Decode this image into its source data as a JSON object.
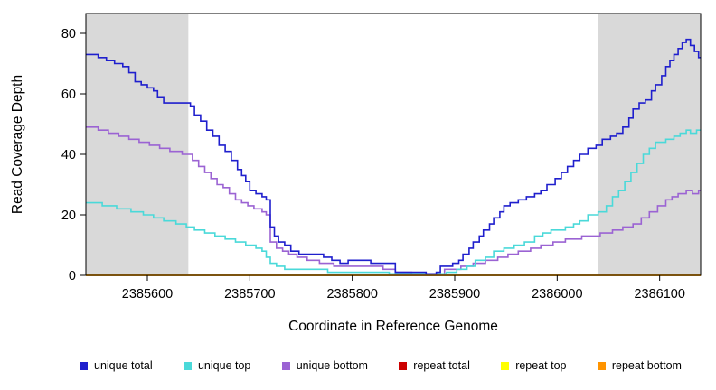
{
  "chart_data": {
    "type": "line",
    "step": true,
    "title": "",
    "xlabel": "Coordinate in Reference Genome",
    "ylabel": "Read Coverage Depth",
    "xlim": [
      2385540,
      2386140
    ],
    "ylim": [
      0,
      80
    ],
    "x_ticks": [
      2385600,
      2385700,
      2385800,
      2385900,
      2386000,
      2386100
    ],
    "y_ticks": [
      0,
      20,
      40,
      60,
      80
    ],
    "grid": false,
    "legend_position": "bottom",
    "shaded_regions": {
      "color": "#d9d9d9",
      "ranges": [
        [
          2385540,
          2385640
        ],
        [
          2386040,
          2386140
        ]
      ]
    },
    "draw_order": [
      3,
      4,
      2,
      1,
      0,
      5
    ],
    "series": [
      {
        "name": "unique total",
        "color": "#1f1fcd",
        "points": [
          [
            2385540,
            73
          ],
          [
            2385552,
            72
          ],
          [
            2385560,
            71
          ],
          [
            2385568,
            70
          ],
          [
            2385576,
            69
          ],
          [
            2385582,
            67
          ],
          [
            2385588,
            64
          ],
          [
            2385594,
            63
          ],
          [
            2385600,
            62
          ],
          [
            2385606,
            61
          ],
          [
            2385610,
            59
          ],
          [
            2385616,
            57
          ],
          [
            2385642,
            56
          ],
          [
            2385646,
            53
          ],
          [
            2385652,
            51
          ],
          [
            2385658,
            48
          ],
          [
            2385664,
            46
          ],
          [
            2385670,
            43
          ],
          [
            2385676,
            41
          ],
          [
            2385682,
            38
          ],
          [
            2385688,
            35
          ],
          [
            2385692,
            33
          ],
          [
            2385696,
            31
          ],
          [
            2385700,
            28
          ],
          [
            2385706,
            27
          ],
          [
            2385712,
            26
          ],
          [
            2385716,
            25
          ],
          [
            2385720,
            16
          ],
          [
            2385724,
            13
          ],
          [
            2385728,
            11
          ],
          [
            2385734,
            10
          ],
          [
            2385740,
            8
          ],
          [
            2385748,
            7
          ],
          [
            2385762,
            7
          ],
          [
            2385772,
            6
          ],
          [
            2385780,
            5
          ],
          [
            2385788,
            4
          ],
          [
            2385796,
            5
          ],
          [
            2385812,
            5
          ],
          [
            2385818,
            4
          ],
          [
            2385836,
            4
          ],
          [
            2385842,
            1
          ],
          [
            2385862,
            1
          ],
          [
            2385872,
            0.5
          ],
          [
            2385882,
            1
          ],
          [
            2385886,
            3
          ],
          [
            2385894,
            3
          ],
          [
            2385898,
            4
          ],
          [
            2385904,
            5
          ],
          [
            2385908,
            7
          ],
          [
            2385914,
            9
          ],
          [
            2385918,
            11
          ],
          [
            2385924,
            13
          ],
          [
            2385928,
            15
          ],
          [
            2385934,
            17
          ],
          [
            2385938,
            19
          ],
          [
            2385944,
            21
          ],
          [
            2385948,
            23
          ],
          [
            2385954,
            24
          ],
          [
            2385962,
            25
          ],
          [
            2385970,
            26
          ],
          [
            2385978,
            27
          ],
          [
            2385984,
            28
          ],
          [
            2385990,
            30
          ],
          [
            2385998,
            32
          ],
          [
            2386004,
            34
          ],
          [
            2386010,
            36
          ],
          [
            2386016,
            38
          ],
          [
            2386022,
            40
          ],
          [
            2386030,
            42
          ],
          [
            2386038,
            43
          ],
          [
            2386044,
            45
          ],
          [
            2386052,
            46
          ],
          [
            2386058,
            47
          ],
          [
            2386064,
            49
          ],
          [
            2386070,
            52
          ],
          [
            2386074,
            55
          ],
          [
            2386080,
            57
          ],
          [
            2386086,
            58
          ],
          [
            2386092,
            61
          ],
          [
            2386096,
            63
          ],
          [
            2386102,
            66
          ],
          [
            2386106,
            69
          ],
          [
            2386110,
            71
          ],
          [
            2386114,
            73
          ],
          [
            2386118,
            75
          ],
          [
            2386122,
            77
          ],
          [
            2386126,
            78
          ],
          [
            2386130,
            76
          ],
          [
            2386134,
            74
          ],
          [
            2386138,
            72
          ],
          [
            2386140,
            72
          ]
        ]
      },
      {
        "name": "unique top",
        "color": "#4ad9d9",
        "points": [
          [
            2385540,
            24
          ],
          [
            2385556,
            23
          ],
          [
            2385570,
            22
          ],
          [
            2385584,
            21
          ],
          [
            2385596,
            20
          ],
          [
            2385606,
            19
          ],
          [
            2385616,
            18
          ],
          [
            2385628,
            17
          ],
          [
            2385638,
            16
          ],
          [
            2385646,
            15
          ],
          [
            2385656,
            14
          ],
          [
            2385666,
            13
          ],
          [
            2385676,
            12
          ],
          [
            2385686,
            11
          ],
          [
            2385696,
            10
          ],
          [
            2385706,
            9
          ],
          [
            2385712,
            8
          ],
          [
            2385716,
            6
          ],
          [
            2385720,
            4
          ],
          [
            2385726,
            3
          ],
          [
            2385734,
            2
          ],
          [
            2385766,
            2
          ],
          [
            2385776,
            1
          ],
          [
            2385812,
            1
          ],
          [
            2385836,
            0.5
          ],
          [
            2385884,
            0.5
          ],
          [
            2385892,
            1
          ],
          [
            2385902,
            2
          ],
          [
            2385912,
            3
          ],
          [
            2385920,
            5
          ],
          [
            2385930,
            6
          ],
          [
            2385938,
            8
          ],
          [
            2385948,
            9
          ],
          [
            2385958,
            10
          ],
          [
            2385968,
            11
          ],
          [
            2385978,
            13
          ],
          [
            2385986,
            14
          ],
          [
            2385994,
            15
          ],
          [
            2386008,
            16
          ],
          [
            2386016,
            17
          ],
          [
            2386022,
            18
          ],
          [
            2386030,
            20
          ],
          [
            2386040,
            21
          ],
          [
            2386048,
            23
          ],
          [
            2386054,
            26
          ],
          [
            2386060,
            28
          ],
          [
            2386066,
            31
          ],
          [
            2386072,
            34
          ],
          [
            2386078,
            37
          ],
          [
            2386084,
            40
          ],
          [
            2386090,
            42
          ],
          [
            2386096,
            44
          ],
          [
            2386106,
            45
          ],
          [
            2386114,
            46
          ],
          [
            2386120,
            47
          ],
          [
            2386126,
            48
          ],
          [
            2386130,
            47
          ],
          [
            2386136,
            48
          ],
          [
            2386140,
            48
          ]
        ]
      },
      {
        "name": "unique bottom",
        "color": "#9b63d3",
        "points": [
          [
            2385540,
            49
          ],
          [
            2385552,
            48
          ],
          [
            2385562,
            47
          ],
          [
            2385572,
            46
          ],
          [
            2385582,
            45
          ],
          [
            2385592,
            44
          ],
          [
            2385602,
            43
          ],
          [
            2385612,
            42
          ],
          [
            2385622,
            41
          ],
          [
            2385634,
            40
          ],
          [
            2385644,
            38
          ],
          [
            2385650,
            36
          ],
          [
            2385656,
            34
          ],
          [
            2385662,
            32
          ],
          [
            2385668,
            30
          ],
          [
            2385674,
            29
          ],
          [
            2385680,
            27
          ],
          [
            2385686,
            25
          ],
          [
            2385692,
            24
          ],
          [
            2385698,
            23
          ],
          [
            2385704,
            22
          ],
          [
            2385712,
            21
          ],
          [
            2385716,
            20
          ],
          [
            2385720,
            11
          ],
          [
            2385726,
            9
          ],
          [
            2385732,
            8
          ],
          [
            2385738,
            7
          ],
          [
            2385746,
            6
          ],
          [
            2385756,
            5
          ],
          [
            2385768,
            4
          ],
          [
            2385782,
            3
          ],
          [
            2385816,
            3
          ],
          [
            2385830,
            2
          ],
          [
            2385842,
            1
          ],
          [
            2385858,
            0.5
          ],
          [
            2385884,
            0.5
          ],
          [
            2385890,
            2
          ],
          [
            2385906,
            3
          ],
          [
            2385918,
            4
          ],
          [
            2385930,
            5
          ],
          [
            2385942,
            6
          ],
          [
            2385952,
            7
          ],
          [
            2385962,
            8
          ],
          [
            2385974,
            9
          ],
          [
            2385984,
            10
          ],
          [
            2385996,
            11
          ],
          [
            2386008,
            12
          ],
          [
            2386024,
            13
          ],
          [
            2386042,
            14
          ],
          [
            2386054,
            15
          ],
          [
            2386064,
            16
          ],
          [
            2386074,
            17
          ],
          [
            2386082,
            19
          ],
          [
            2386090,
            21
          ],
          [
            2386098,
            23
          ],
          [
            2386106,
            25
          ],
          [
            2386112,
            26
          ],
          [
            2386118,
            27
          ],
          [
            2386126,
            28
          ],
          [
            2386132,
            27
          ],
          [
            2386138,
            28
          ],
          [
            2386140,
            28
          ]
        ]
      },
      {
        "name": "repeat total",
        "color": "#cc0000",
        "points": [
          [
            2385540,
            0
          ],
          [
            2386140,
            0
          ]
        ]
      },
      {
        "name": "repeat top",
        "color": "#ffff00",
        "points": [
          [
            2385540,
            0
          ],
          [
            2386140,
            0
          ]
        ]
      },
      {
        "name": "repeat bottom",
        "color": "#ff9400",
        "points": [
          [
            2385540,
            0
          ],
          [
            2386140,
            0
          ]
        ]
      }
    ]
  }
}
